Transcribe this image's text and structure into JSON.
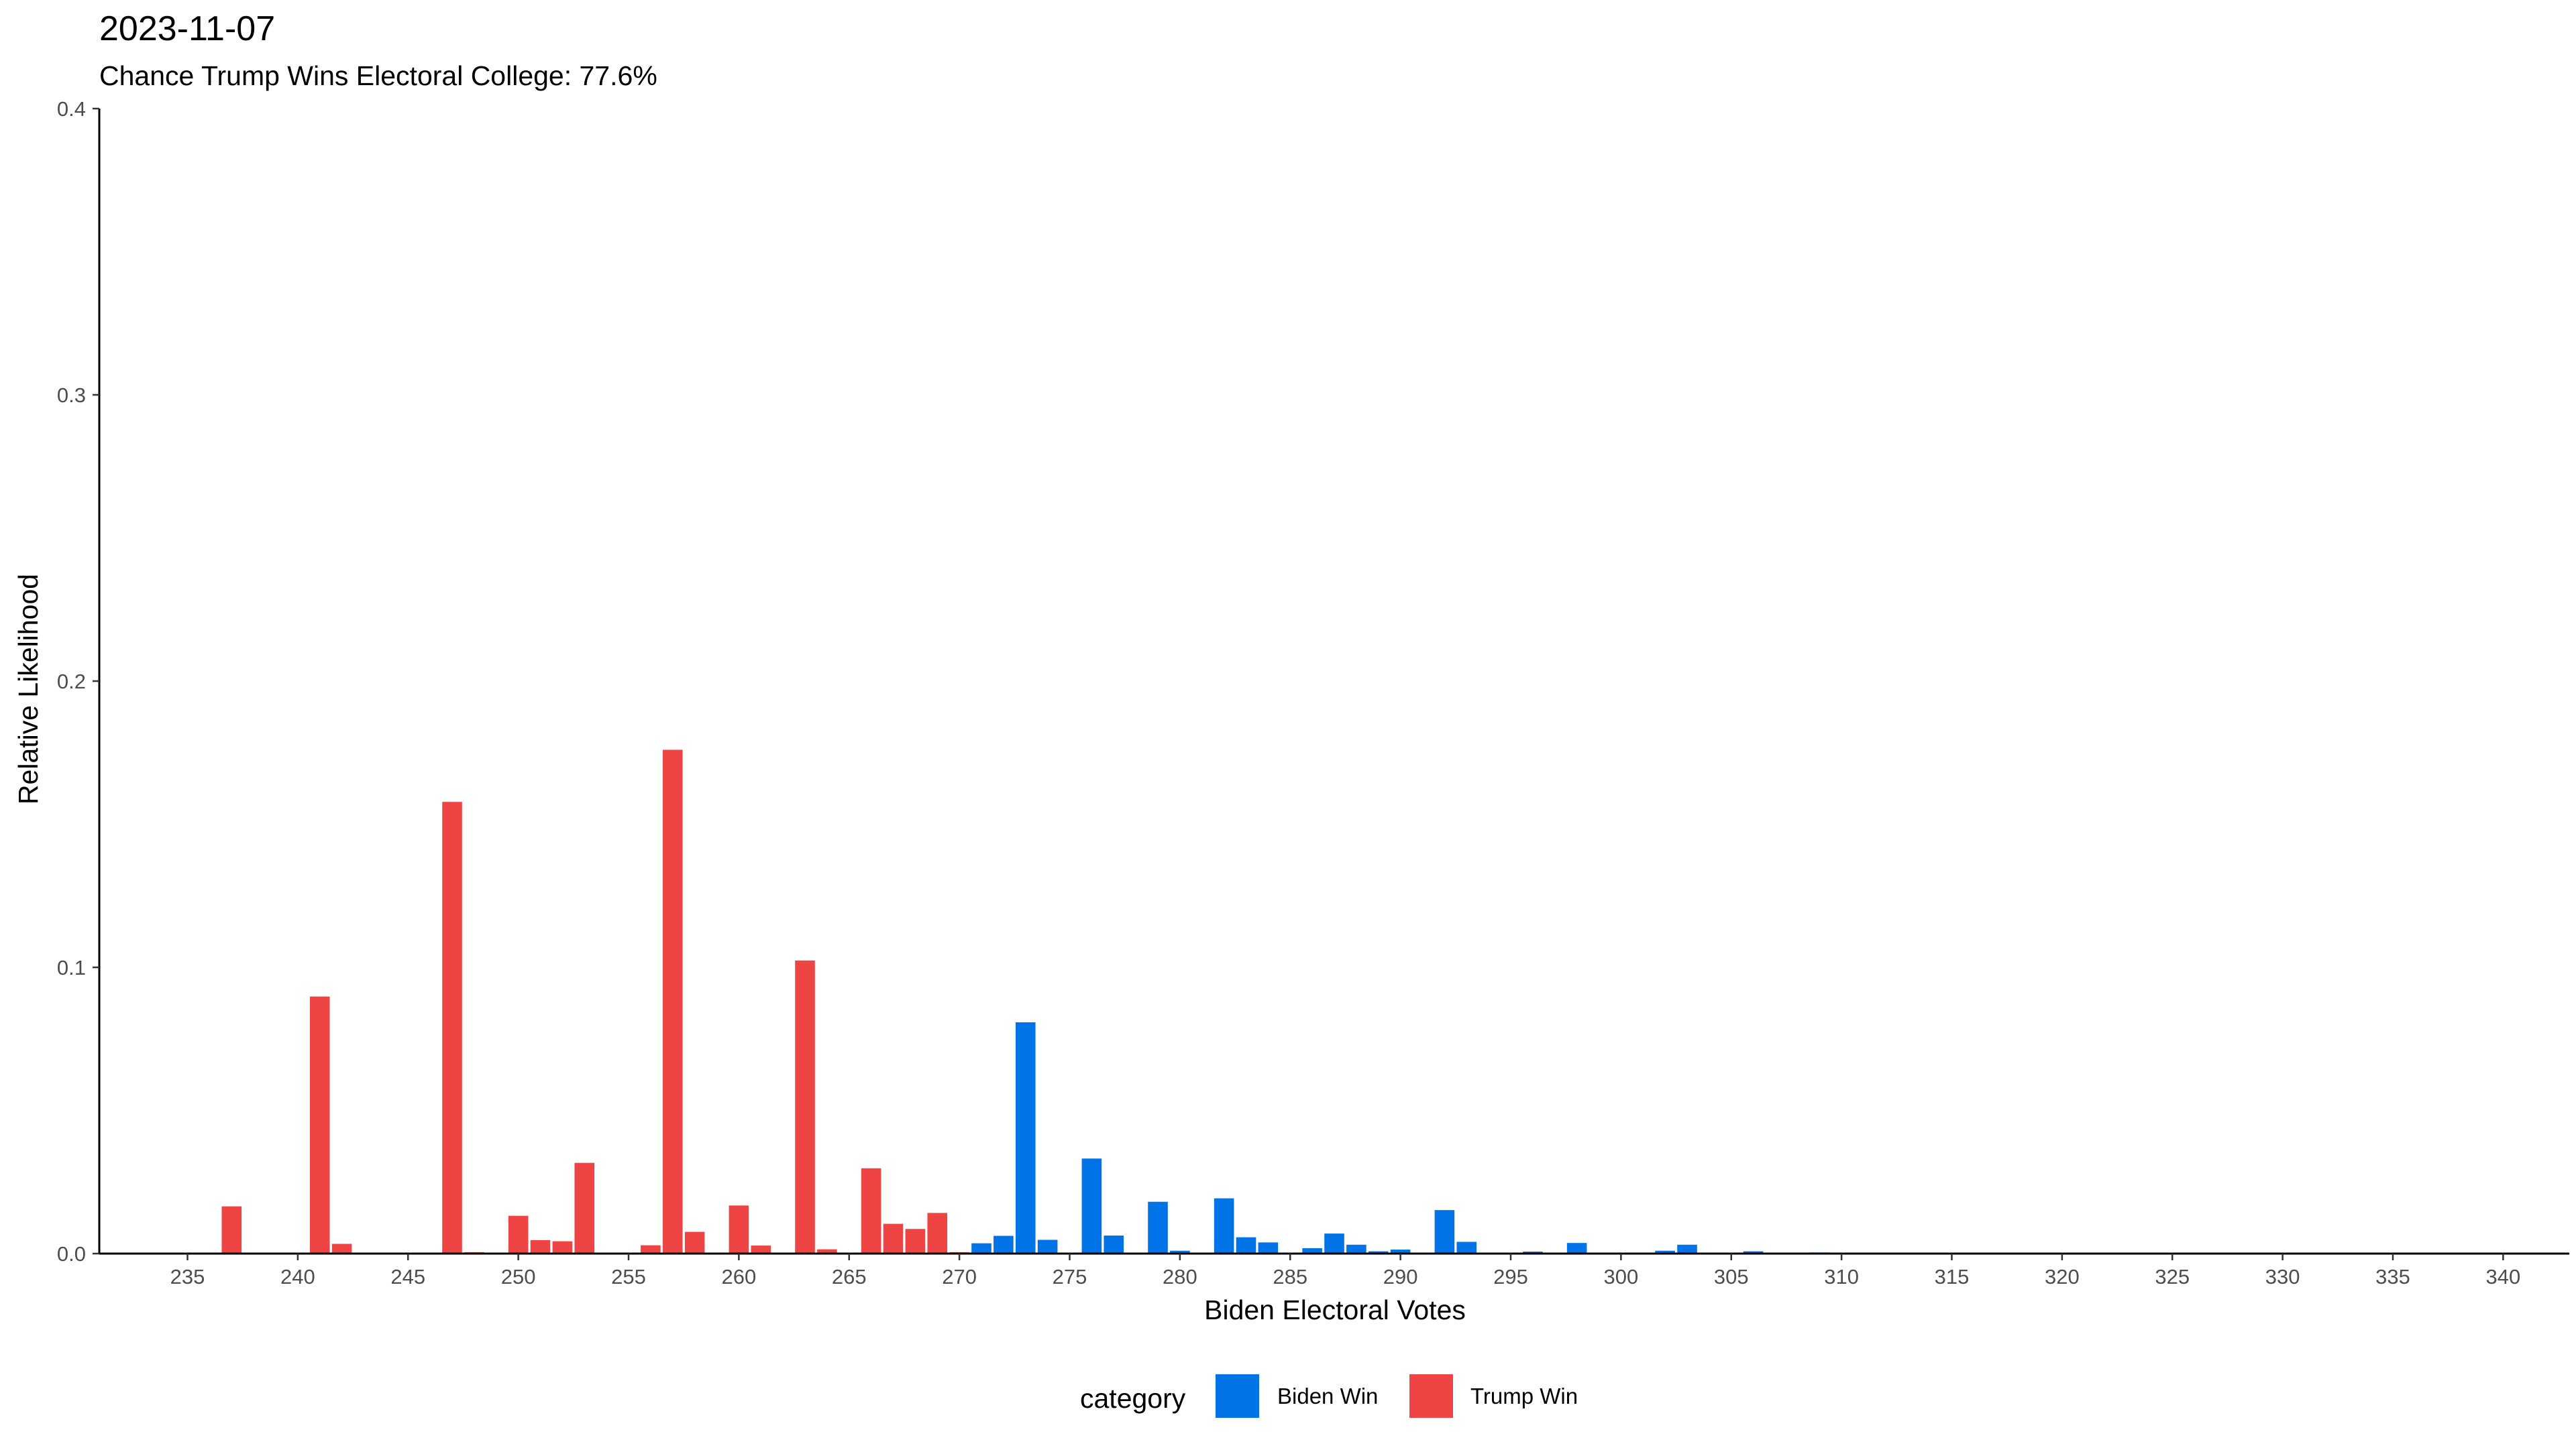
{
  "chart_data": {
    "type": "bar",
    "title": "2023-11-07",
    "subtitle": "Chance Trump Wins Electoral College: 77.6%",
    "xlabel": "Biden Electoral Votes",
    "ylabel": "Relative Likelihood",
    "xlim": [
      231,
      343
    ],
    "ylim": [
      0,
      0.4
    ],
    "x_ticks": [
      235,
      240,
      245,
      250,
      255,
      260,
      265,
      270,
      275,
      280,
      285,
      290,
      295,
      300,
      305,
      310,
      315,
      320,
      325,
      330,
      335,
      340
    ],
    "y_ticks": [
      0.0,
      0.1,
      0.2,
      0.3,
      0.4
    ],
    "y_tick_labels": [
      "0.0",
      "0.1",
      "0.2",
      "0.3",
      "0.4"
    ],
    "grid": false,
    "legend": {
      "title": "category",
      "position": "bottom",
      "entries": [
        {
          "label": "Biden Win",
          "color": "#0073E6"
        },
        {
          "label": "Trump Win",
          "color": "#EF4444"
        }
      ]
    },
    "series": [
      {
        "name": "Trump Win",
        "color": "#EF4444",
        "x": [
          237,
          241,
          242,
          247,
          248,
          250,
          251,
          252,
          253,
          256,
          257,
          258,
          260,
          261,
          263,
          264,
          266,
          267,
          268,
          269,
          270
        ],
        "values": [
          0.0165,
          0.0898,
          0.0034,
          0.1578,
          0.0005,
          0.0132,
          0.0047,
          0.0043,
          0.0317,
          0.0029,
          0.176,
          0.0076,
          0.0168,
          0.0028,
          0.1024,
          0.0015,
          0.0298,
          0.0104,
          0.0086,
          0.0142,
          0.0005
        ]
      },
      {
        "name": "Biden Win",
        "color": "#0073E6",
        "x": [
          271,
          272,
          273,
          274,
          276,
          277,
          279,
          280,
          282,
          283,
          284,
          286,
          287,
          288,
          289,
          290,
          292,
          293,
          296,
          298,
          302,
          303,
          306,
          309
        ],
        "values": [
          0.0036,
          0.0062,
          0.0808,
          0.0048,
          0.0332,
          0.0063,
          0.0181,
          0.001,
          0.0193,
          0.0057,
          0.0039,
          0.0019,
          0.007,
          0.0031,
          0.0008,
          0.0014,
          0.0152,
          0.0041,
          0.0007,
          0.0037,
          0.001,
          0.0031,
          0.0008,
          0.0004
        ]
      }
    ]
  }
}
